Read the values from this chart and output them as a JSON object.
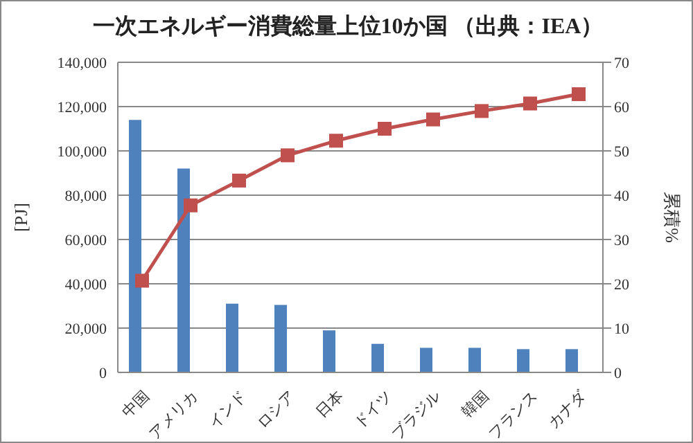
{
  "chart_data": {
    "type": "bar",
    "title": "一次エネルギー消費総量上位10か国 （出典：IEA）",
    "categories": [
      "中国",
      "アメリカ",
      "インド",
      "ロシア",
      "日本",
      "ドイツ",
      "ブラジル",
      "韓国",
      "フランス",
      "カナダ"
    ],
    "series": [
      {
        "color": "#4f81bd",
        "values": [
          114000,
          92000,
          31000,
          30500,
          19000,
          12900,
          11100,
          11100,
          10500,
          10500
        ]
      },
      {
        "color": "#9bbb59",
        "values": [
          21,
          38,
          43,
          49,
          52,
          55,
          57,
          59,
          61,
          63
        ]
      },
      {
        "type": "line",
        "axis": "y2",
        "color": "#c0504d",
        "marker": "square",
        "values": [
          20.7,
          37.7,
          43.3,
          49.0,
          52.3,
          55.0,
          57.1,
          59.0,
          60.7,
          62.8
        ]
      }
    ],
    "ylabel": "[PJ]",
    "y2label": "累積%",
    "ylim": [
      0,
      140000
    ],
    "yticks": [
      {
        "value": 0,
        "label": "0"
      },
      {
        "value": 20000,
        "label": "20,000"
      },
      {
        "value": 40000,
        "label": "40,000"
      },
      {
        "value": 60000,
        "label": "60,000"
      },
      {
        "value": 80000,
        "label": "80,000"
      },
      {
        "value": 100000,
        "label": "100,000"
      },
      {
        "value": 120000,
        "label": "120,000"
      },
      {
        "value": 140000,
        "label": "140,000"
      }
    ],
    "y2lim": [
      0,
      70
    ],
    "y2ticks": [
      0,
      10,
      20,
      30,
      40,
      50,
      60,
      70
    ],
    "grid": "y"
  }
}
